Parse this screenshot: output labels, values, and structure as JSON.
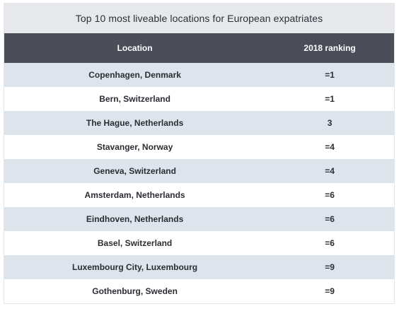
{
  "table": {
    "title": "Top 10 most liveable locations for European expatriates",
    "headers": [
      "Location",
      "2018 ranking"
    ],
    "rows": [
      [
        "Copenhagen, Denmark",
        "=1"
      ],
      [
        "Bern, Switzerland",
        "=1"
      ],
      [
        "The Hague, Netherlands",
        "3"
      ],
      [
        "Stavanger, Norway",
        "=4"
      ],
      [
        "Geneva, Switzerland",
        "=4"
      ],
      [
        "Amsterdam, Netherlands",
        "=6"
      ],
      [
        "Eindhoven, Netherlands",
        "=6"
      ],
      [
        "Basel, Switzerland",
        "=6"
      ],
      [
        "Luxembourg City, Luxembourg",
        "=9"
      ],
      [
        "Gothenburg, Sweden",
        "=9"
      ]
    ],
    "colors": {
      "title_bg": "#e6e8ec",
      "header_bg": "#4b4e59",
      "row_alt_bg": "#dde4ec"
    }
  }
}
